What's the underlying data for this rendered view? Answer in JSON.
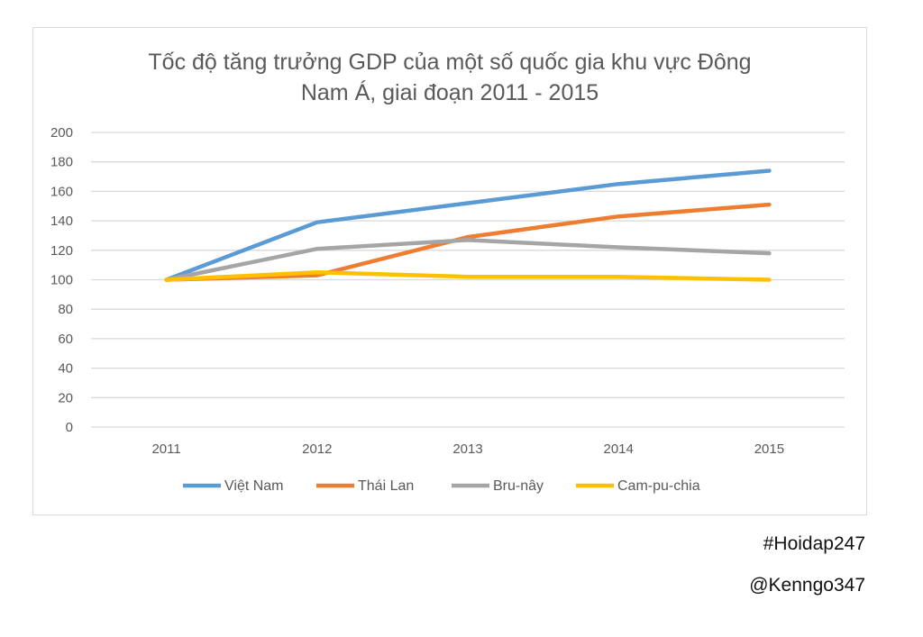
{
  "chart_data": {
    "type": "line",
    "title_lines": [
      "Tốc độ tăng trưởng GDP của một số quốc gia khu vực Đông",
      "Nam Á, giai đoạn 2011 - 2015"
    ],
    "categories": [
      "2011",
      "2012",
      "2013",
      "2014",
      "2015"
    ],
    "ylim": [
      0,
      200
    ],
    "y_ticks": [
      0,
      20,
      40,
      60,
      80,
      100,
      120,
      140,
      160,
      180,
      200
    ],
    "grid": true,
    "legend_position": "bottom",
    "series": [
      {
        "name": "Việt Nam",
        "color": "#5b9bd5",
        "values": [
          100,
          139,
          152,
          165,
          174
        ]
      },
      {
        "name": "Thái Lan",
        "color": "#ed7d31",
        "values": [
          100,
          103,
          129,
          143,
          151
        ]
      },
      {
        "name": "Bru-nây",
        "color": "#a5a5a5",
        "values": [
          100,
          121,
          127,
          122,
          118
        ]
      },
      {
        "name": "Cam-pu-chia",
        "color": "#ffc000",
        "values": [
          100,
          105,
          102,
          102,
          100
        ]
      }
    ]
  },
  "tags": [
    "#Hoidap247",
    "@Kenngo347"
  ]
}
